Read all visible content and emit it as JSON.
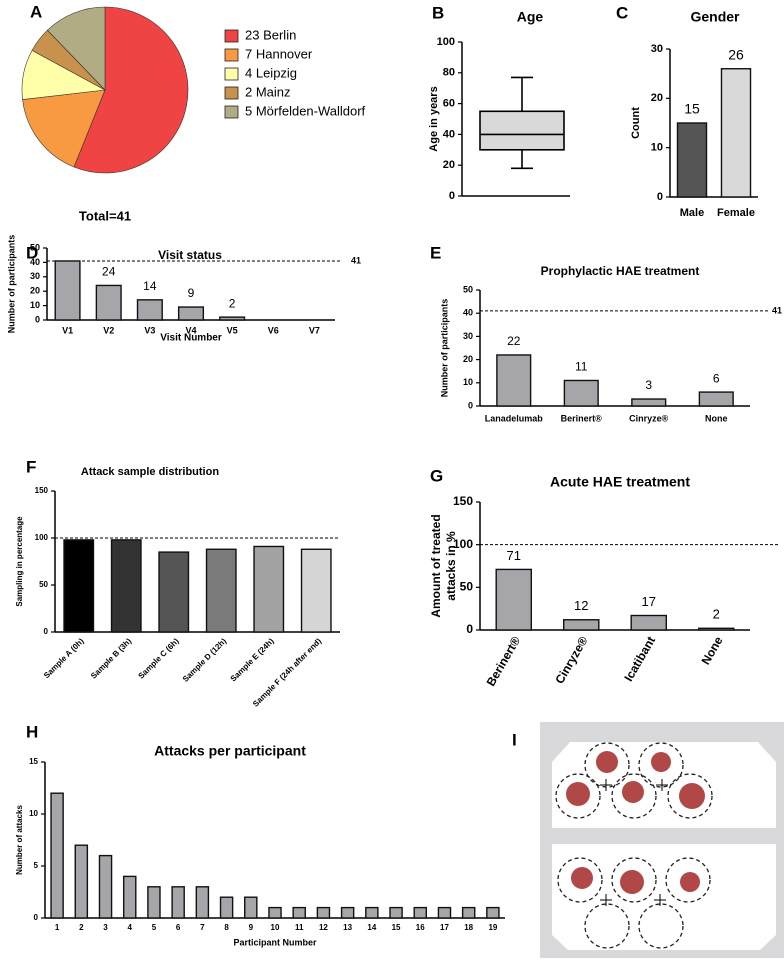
{
  "chart_data": [
    {
      "type": "pie",
      "panel": "A",
      "categories": [
        "23 Berlin",
        "7 Hannover",
        "4 Leipzig",
        "2 Mainz",
        "5 Mörfelden-Walldorf"
      ],
      "values": [
        23,
        7,
        4,
        2,
        5
      ],
      "colors": [
        "#f04444",
        "#f79a42",
        "#ffffaa",
        "#c8914c",
        "#b2ac84"
      ],
      "annotation": "Total=41"
    },
    {
      "type": "box",
      "panel": "B",
      "title": "Age",
      "ylabel": "Age in years",
      "box": {
        "whisker_low": 18,
        "q1": 30,
        "median": 40,
        "q3": 55,
        "whisker_high": 77
      },
      "color": "#d9d9d9",
      "ylim": [
        0,
        100
      ],
      "yticks": [
        0,
        20,
        40,
        60,
        80,
        100
      ]
    },
    {
      "type": "bar",
      "panel": "C",
      "title": "Gender",
      "ylabel": "Count",
      "categories": [
        "Male",
        "Female"
      ],
      "values": [
        15,
        26
      ],
      "value_labels": [
        15,
        26
      ],
      "colors": [
        "#555555",
        "#d9d9d9"
      ],
      "ylim": [
        0,
        30
      ],
      "yticks": [
        0,
        10,
        20,
        30
      ]
    },
    {
      "type": "bar",
      "panel": "D",
      "title": "Visit status",
      "xlabel": "Visit Number",
      "ylabel": "Number of participants",
      "categories": [
        "V1",
        "V2",
        "V3",
        "V4",
        "V5",
        "V6",
        "V7"
      ],
      "values": [
        41,
        24,
        14,
        9,
        2,
        0,
        0
      ],
      "value_labels": [
        null,
        24,
        14,
        9,
        2,
        null,
        null
      ],
      "color": "#a6a6aa",
      "reference_line": 41,
      "ylim": [
        0,
        50
      ],
      "yticks": [
        0,
        10,
        20,
        30,
        40,
        50
      ]
    },
    {
      "type": "bar",
      "panel": "E",
      "title": "Prophylactic HAE treatment",
      "ylabel": "Number of participants",
      "categories": [
        "Lanadelumab",
        "Berinert®",
        "Cinryze®",
        "None"
      ],
      "values": [
        22,
        11,
        3,
        6
      ],
      "value_labels": [
        22,
        11,
        3,
        6
      ],
      "color": "#a6a6aa",
      "reference_line": 41,
      "ylim": [
        0,
        50
      ],
      "yticks": [
        0,
        10,
        20,
        30,
        40,
        50
      ]
    },
    {
      "type": "bar",
      "panel": "F",
      "title": "Attack sample distribution",
      "ylabel": "Sampling in percentage",
      "categories": [
        "Sample A (0h)",
        "Sample B (3h)",
        "Sample C (6h)",
        "Sample D (12h)",
        "Sample E (24h)",
        "Sample F (24h after end)"
      ],
      "values": [
        98,
        98,
        85,
        88,
        91,
        88
      ],
      "colors": [
        "#000000",
        "#333333",
        "#555555",
        "#7a7a7a",
        "#a3a3a3",
        "#d6d6d6"
      ],
      "reference_line": 100,
      "ylim": [
        0,
        150
      ],
      "yticks": [
        0,
        50,
        100,
        150
      ]
    },
    {
      "type": "bar",
      "panel": "G",
      "title": "Acute HAE treatment",
      "ylabel": [
        "Amount of treated",
        "attacks in %"
      ],
      "categories": [
        "Berinert®",
        "Cinryze®",
        "Icatibant",
        "None"
      ],
      "values": [
        71,
        12,
        17,
        2
      ],
      "value_labels": [
        71,
        12,
        17,
        2
      ],
      "color": "#a6a6aa",
      "reference_line": 100,
      "ylim": [
        0,
        150
      ],
      "yticks": [
        0,
        50,
        100,
        150
      ]
    },
    {
      "type": "bar",
      "panel": "H",
      "title": "Attacks per participant",
      "xlabel": "Participant Number",
      "ylabel": "Number of attacks",
      "categories": [
        "1",
        "2",
        "3",
        "4",
        "5",
        "6",
        "7",
        "8",
        "9",
        "10",
        "11",
        "12",
        "13",
        "14",
        "15",
        "16",
        "17",
        "18",
        "19"
      ],
      "values": [
        12,
        7,
        6,
        4,
        3,
        3,
        3,
        2,
        2,
        1,
        1,
        1,
        1,
        1,
        1,
        1,
        1,
        1,
        1
      ],
      "color": "#a6a6aa",
      "ylim": [
        0,
        15
      ],
      "yticks": [
        0,
        5,
        10,
        15
      ]
    }
  ],
  "photo": {
    "panel": "I"
  }
}
